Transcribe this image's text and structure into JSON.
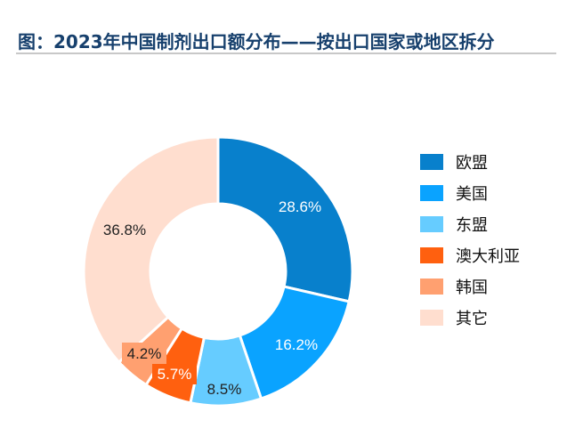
{
  "title": "图：2023年中国制剂出口额分布——按出口国家或地区拆分",
  "chart_data": {
    "type": "pie",
    "donut": true,
    "title": "图：2023年中国制剂出口额分布——按出口国家或地区拆分",
    "categories": [
      "欧盟",
      "美国",
      "东盟",
      "澳大利亚",
      "韩国",
      "其它"
    ],
    "values": [
      28.6,
      16.2,
      8.5,
      5.7,
      4.2,
      36.8
    ],
    "labels": [
      "28.6%",
      "16.2%",
      "8.5%",
      "5.7%",
      "4.2%",
      "36.8%"
    ],
    "colors": [
      "#0880cc",
      "#0aa3ff",
      "#66ccff",
      "#ff600f",
      "#ffa070",
      "#ffdecf"
    ],
    "label_colors": [
      "#ffffff",
      "#ffffff",
      "#222222",
      "#ffffff",
      "#222222",
      "#222222"
    ],
    "legend_position": "right"
  }
}
